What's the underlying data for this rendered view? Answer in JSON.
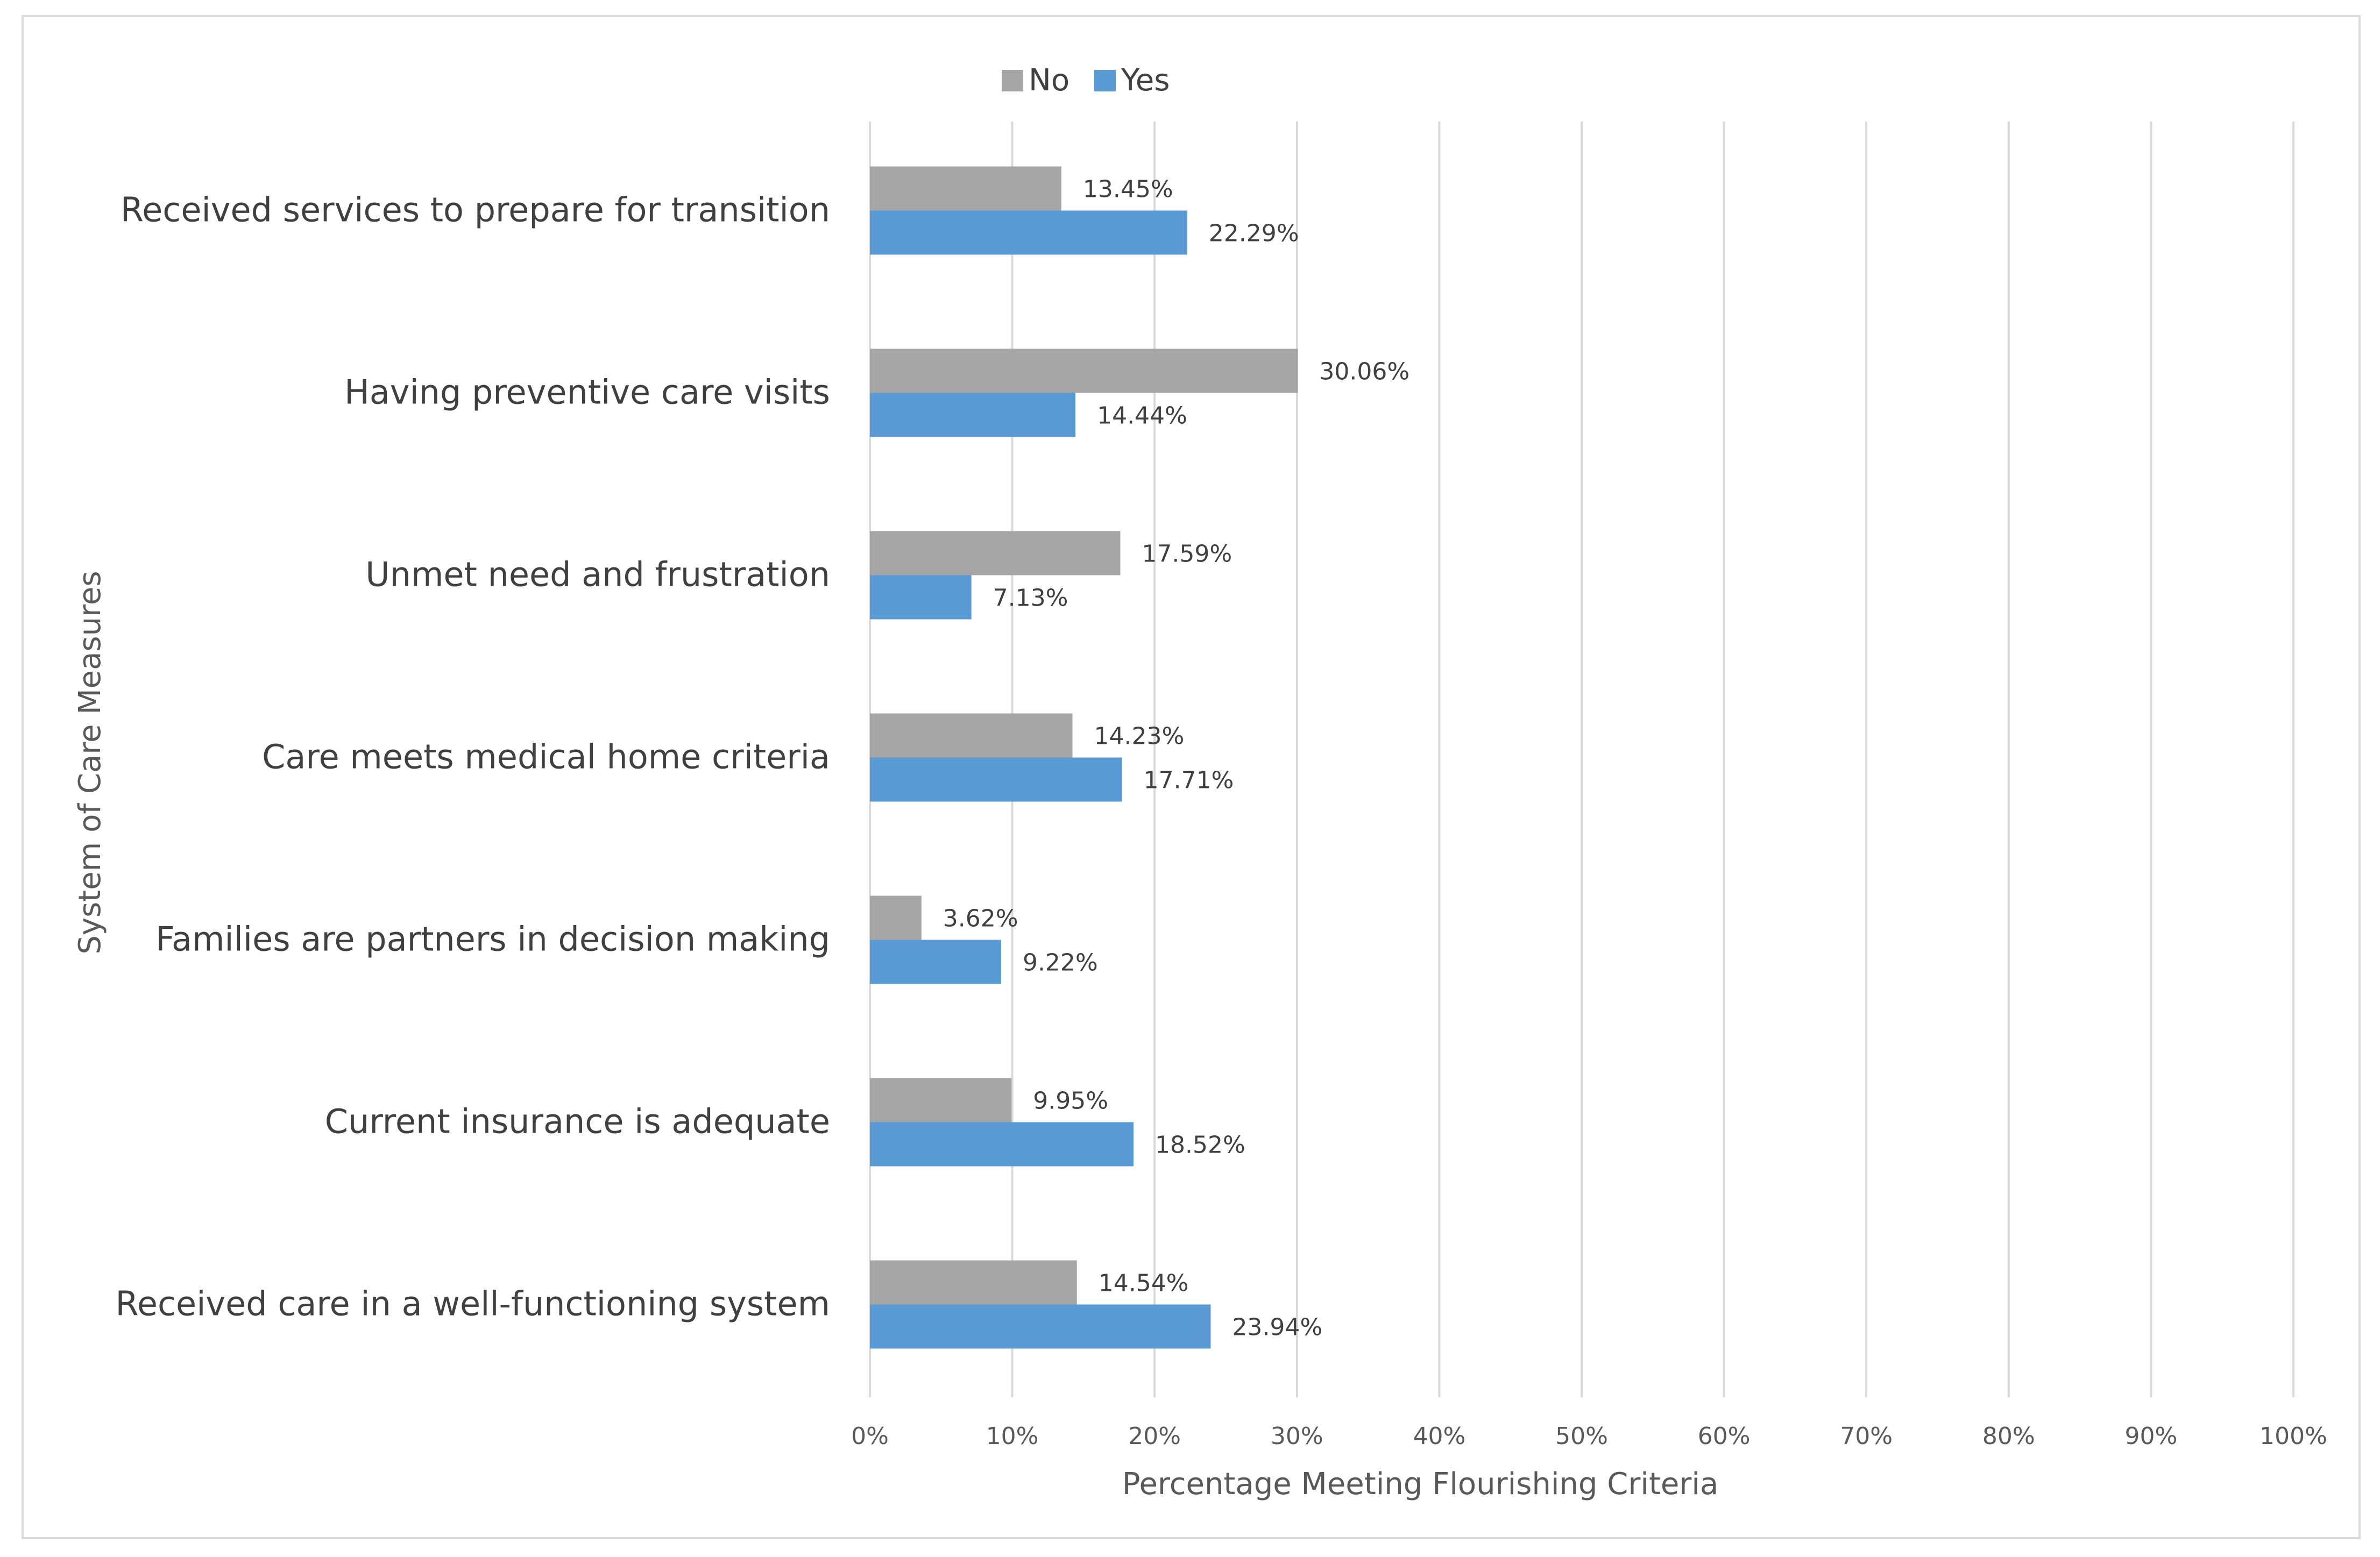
{
  "chart_data": {
    "type": "bar",
    "orientation": "horizontal",
    "title": "",
    "xlabel": "Percentage Meeting Flourishing Criteria",
    "ylabel": "System of Care Measures",
    "xlim": [
      0,
      100
    ],
    "x_ticks": [
      "0%",
      "10%",
      "20%",
      "30%",
      "40%",
      "50%",
      "60%",
      "70%",
      "80%",
      "90%",
      "100%"
    ],
    "grid": true,
    "legend_position": "top-center",
    "categories": [
      "Received services to prepare for transition",
      "Having preventive care visits",
      "Unmet need and frustration",
      "Care meets medical home criteria",
      "Families are partners in decision making",
      "Current insurance is adequate",
      "Received care in a well-functioning system"
    ],
    "series": [
      {
        "name": "No",
        "color": "#a5a5a5",
        "values": [
          13.45,
          30.06,
          17.59,
          14.23,
          3.62,
          9.95,
          14.54
        ],
        "labels": [
          "13.45%",
          "30.06%",
          "17.59%",
          "14.23%",
          "3.62%",
          "9.95%",
          "14.54%"
        ]
      },
      {
        "name": "Yes",
        "color": "#5b9bd5",
        "values": [
          22.29,
          14.44,
          7.13,
          17.71,
          9.22,
          18.52,
          23.94
        ],
        "labels": [
          "22.29%",
          "14.44%",
          "7.13%",
          "17.71%",
          "9.22%",
          "18.52%",
          "23.94%"
        ]
      }
    ]
  }
}
